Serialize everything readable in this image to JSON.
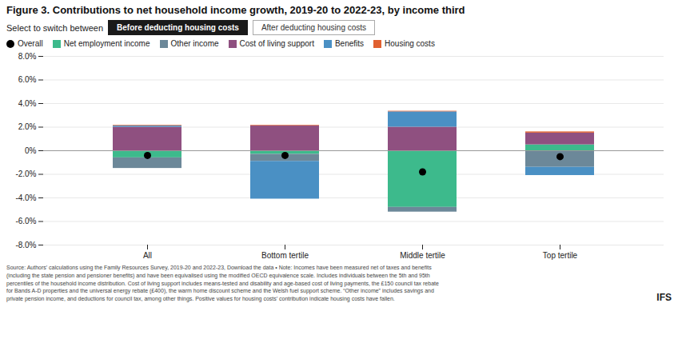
{
  "chart_data": {
    "type": "bar",
    "title": "Figure 3. Contributions to net household income growth, 2019-20 to 2022-23, by income third",
    "annotations": [
      "Select to switch between",
      "Before deducting housing costs",
      "After deducting housing costs",
      "Source: Authors' calculations using the Family Resources Survey, 2019-20 and 2022-23, Download the data • Note: Incomes have been measured net of taxes and benefits\n(including the state pension and pensioner benefits) and have been equivalised using the modified OECD equivalence scale. Includes individuals between the 5th and 95th\npercentiles of the household income distribution. Cost of living support includes means-tested and disability and age-based cost of living payments, the £150 council tax rebate\nfor Bands A-D properties and the universal energy rebate (£400), the warm home discount scheme and the Welsh fuel support scheme. “Other income” includes savings and\nprivate pension income, and deductions for council tax, among other things. Positive values for housing costs’ contribution indicate housing costs have fallen.",
      "IFS"
    ],
    "categories": [
      "All",
      "Bottom tertile",
      "Middle tertile",
      "Top tertile"
    ],
    "stacked": true,
    "series": [
      {
        "name": "Overall",
        "type": "scatter",
        "marker": "circle",
        "color": "#000000",
        "values": [
          -0.4,
          -0.4,
          -1.8,
          -0.5
        ]
      },
      {
        "name": "Net employment income",
        "color": "#3dba8c",
        "values": [
          -0.6,
          -0.3,
          -4.8,
          0.5
        ]
      },
      {
        "name": "Other income",
        "color": "#6c8899",
        "values": [
          -0.9,
          -0.6,
          -0.4,
          -1.4
        ]
      },
      {
        "name": "Cost of living support",
        "color": "#8f5080",
        "values": [
          2.0,
          2.1,
          2.0,
          1.0
        ]
      },
      {
        "name": "Benefits",
        "color": "#4a90c4",
        "values": [
          0.1,
          -3.2,
          1.3,
          -0.7
        ]
      },
      {
        "name": "Housing costs",
        "color": "#e06030",
        "values": [
          0.05,
          0.05,
          0.05,
          0.1
        ]
      }
    ],
    "ylim": [
      -8.0,
      8.0
    ],
    "yticks": [
      {
        "value": -8.0,
        "label": "-8.0%"
      },
      {
        "value": -6.0,
        "label": "-6.0%"
      },
      {
        "value": -4.0,
        "label": "-4.0%"
      },
      {
        "value": -2.0,
        "label": "-2.0%"
      },
      {
        "value": 0,
        "label": "0%"
      },
      {
        "value": 2.0,
        "label": "2.0%"
      },
      {
        "value": 4.0,
        "label": "4.0%"
      },
      {
        "value": 6.0,
        "label": "6.0%"
      },
      {
        "value": 8.0,
        "label": "8.0%"
      }
    ],
    "grid": true
  }
}
